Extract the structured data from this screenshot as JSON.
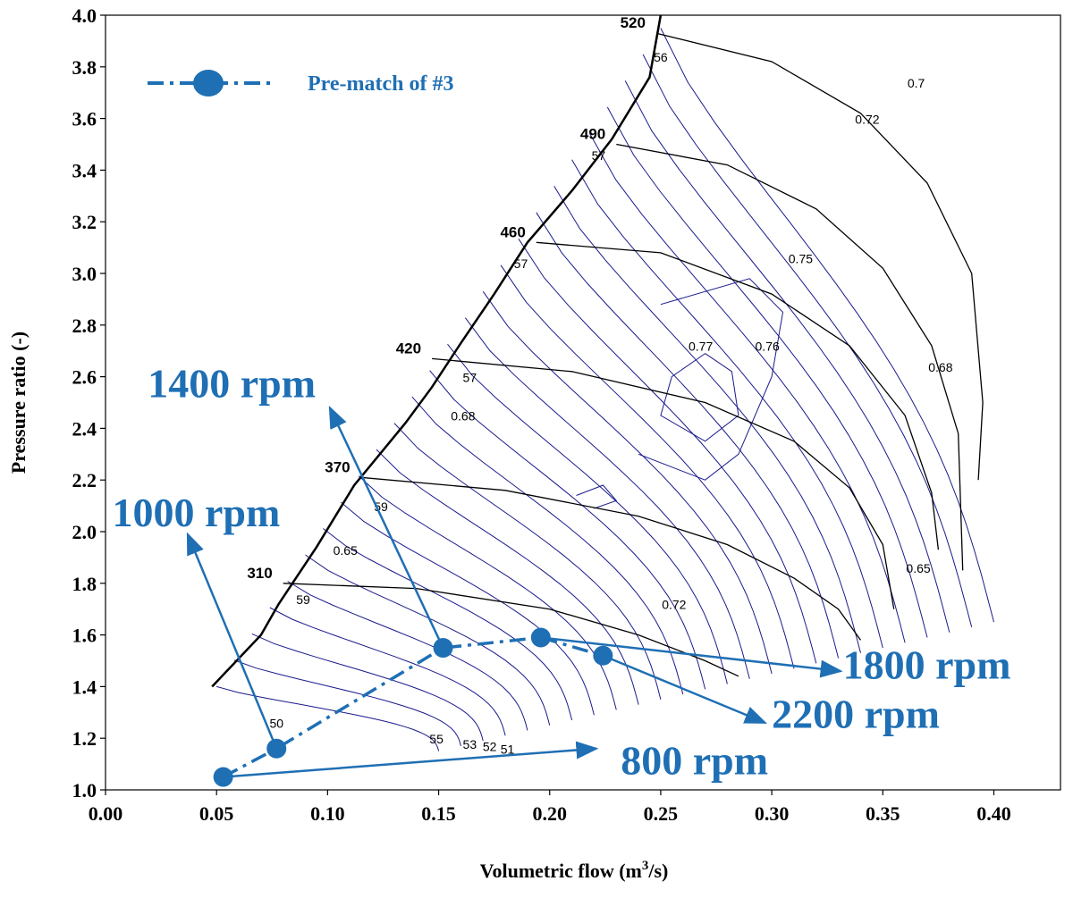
{
  "chart_data": {
    "type": "scatter",
    "title": "",
    "xlabel": "Volumetric flow (m",
    "xlabel_sup": "3",
    "xlabel_tail": "/s)",
    "ylabel": "Pressure ratio (-)",
    "xlim": [
      0.0,
      0.43
    ],
    "ylim": [
      1.0,
      4.0
    ],
    "x_ticks": [
      "0.00",
      "0.05",
      "0.10",
      "0.15",
      "0.20",
      "0.25",
      "0.30",
      "0.35",
      "0.40"
    ],
    "y_ticks": [
      "1.0",
      "1.2",
      "1.4",
      "1.6",
      "1.8",
      "2.0",
      "2.2",
      "2.4",
      "2.6",
      "2.8",
      "3.0",
      "3.2",
      "3.4",
      "3.6",
      "3.8",
      "4.0"
    ],
    "grid": false,
    "legend": {
      "position": "top-left",
      "entries": [
        "Pre-match of #3"
      ]
    },
    "colors": {
      "series": "#1f6fb4",
      "efficiency_lines": "#1a1a8c",
      "speed_lines": "#000000"
    },
    "surge_line": [
      [
        0.048,
        1.4
      ],
      [
        0.07,
        1.6
      ],
      [
        0.078,
        1.72
      ],
      [
        0.095,
        1.94
      ],
      [
        0.112,
        2.18
      ],
      [
        0.135,
        2.42
      ],
      [
        0.147,
        2.56
      ],
      [
        0.16,
        2.73
      ],
      [
        0.175,
        2.92
      ],
      [
        0.19,
        3.12
      ],
      [
        0.21,
        3.32
      ],
      [
        0.228,
        3.52
      ],
      [
        0.245,
        3.76
      ],
      [
        0.25,
        4.0
      ]
    ],
    "speed_lines": [
      {
        "label": "310",
        "points": [
          [
            0.08,
            1.8
          ],
          [
            0.14,
            1.78
          ],
          [
            0.2,
            1.7
          ],
          [
            0.24,
            1.6
          ],
          [
            0.27,
            1.5
          ],
          [
            0.285,
            1.44
          ]
        ]
      },
      {
        "label": "370",
        "points": [
          [
            0.115,
            2.21
          ],
          [
            0.18,
            2.16
          ],
          [
            0.24,
            2.06
          ],
          [
            0.28,
            1.95
          ],
          [
            0.31,
            1.82
          ],
          [
            0.33,
            1.7
          ],
          [
            0.34,
            1.58
          ]
        ]
      },
      {
        "label": "420",
        "points": [
          [
            0.147,
            2.67
          ],
          [
            0.21,
            2.62
          ],
          [
            0.27,
            2.5
          ],
          [
            0.31,
            2.35
          ],
          [
            0.335,
            2.17
          ],
          [
            0.35,
            1.95
          ],
          [
            0.355,
            1.7
          ]
        ]
      },
      {
        "label": "460",
        "points": [
          [
            0.194,
            3.12
          ],
          [
            0.25,
            3.08
          ],
          [
            0.3,
            2.92
          ],
          [
            0.335,
            2.72
          ],
          [
            0.36,
            2.45
          ],
          [
            0.372,
            2.15
          ],
          [
            0.375,
            1.93
          ]
        ]
      },
      {
        "label": "490",
        "points": [
          [
            0.23,
            3.5
          ],
          [
            0.28,
            3.42
          ],
          [
            0.32,
            3.25
          ],
          [
            0.35,
            3.02
          ],
          [
            0.372,
            2.72
          ],
          [
            0.384,
            2.38
          ],
          [
            0.386,
            1.85
          ]
        ]
      },
      {
        "label": "520",
        "points": [
          [
            0.248,
            3.93
          ],
          [
            0.3,
            3.82
          ],
          [
            0.34,
            3.62
          ],
          [
            0.37,
            3.35
          ],
          [
            0.39,
            3.0
          ],
          [
            0.395,
            2.5
          ],
          [
            0.393,
            2.2
          ]
        ]
      }
    ],
    "efficiency_labels": [
      {
        "text": "0.7",
        "x": 0.365,
        "y": 3.72
      },
      {
        "text": "0.72",
        "x": 0.343,
        "y": 3.58
      },
      {
        "text": "0.75",
        "x": 0.313,
        "y": 3.04
      },
      {
        "text": "0.77",
        "x": 0.268,
        "y": 2.7
      },
      {
        "text": "0.76",
        "x": 0.298,
        "y": 2.7
      },
      {
        "text": "0.68",
        "x": 0.376,
        "y": 2.62
      },
      {
        "text": "0.65",
        "x": 0.366,
        "y": 1.84
      },
      {
        "text": "0.72",
        "x": 0.256,
        "y": 1.7
      },
      {
        "text": "0.68",
        "x": 0.161,
        "y": 2.43
      },
      {
        "text": "0.65",
        "x": 0.108,
        "y": 1.91
      },
      {
        "text": "56",
        "x": 0.25,
        "y": 3.82
      },
      {
        "text": "57",
        "x": 0.222,
        "y": 3.44
      },
      {
        "text": "57",
        "x": 0.187,
        "y": 3.02
      },
      {
        "text": "57",
        "x": 0.164,
        "y": 2.58
      },
      {
        "text": "59",
        "x": 0.124,
        "y": 2.08
      },
      {
        "text": "59",
        "x": 0.089,
        "y": 1.72
      },
      {
        "text": "50",
        "x": 0.077,
        "y": 1.24
      },
      {
        "text": "55",
        "x": 0.149,
        "y": 1.18
      },
      {
        "text": "53",
        "x": 0.164,
        "y": 1.16
      },
      {
        "text": "52",
        "x": 0.173,
        "y": 1.15
      },
      {
        "text": "51",
        "x": 0.181,
        "y": 1.14
      }
    ],
    "series": [
      {
        "name": "Pre-match of #3",
        "x": [
          0.053,
          0.077,
          0.152,
          0.196,
          0.224
        ],
        "y": [
          1.05,
          1.16,
          1.55,
          1.59,
          1.52
        ],
        "line_style": "dash-dot"
      }
    ],
    "annotations": [
      {
        "text": "800 rpm",
        "point_index": 0,
        "label_x": 0.232,
        "label_y": 1.06,
        "arrow_to_x": 0.221,
        "arrow_to_y": 1.16
      },
      {
        "text": "1000 rpm",
        "point_index": 1,
        "label_x": 0.003,
        "label_y": 2.02,
        "arrow_to_x": 0.037,
        "arrow_to_y": 1.99
      },
      {
        "text": "1400 rpm",
        "point_index": 2,
        "label_x": 0.019,
        "label_y": 2.52,
        "arrow_to_x": 0.101,
        "arrow_to_y": 2.48
      },
      {
        "text": "1800 rpm",
        "point_index": 3,
        "label_x": 0.332,
        "label_y": 1.43,
        "arrow_to_x": 0.331,
        "arrow_to_y": 1.46
      },
      {
        "text": "2200 rpm",
        "point_index": 4,
        "label_x": 0.3,
        "label_y": 1.24,
        "arrow_to_x": 0.297,
        "arrow_to_y": 1.26
      }
    ]
  }
}
